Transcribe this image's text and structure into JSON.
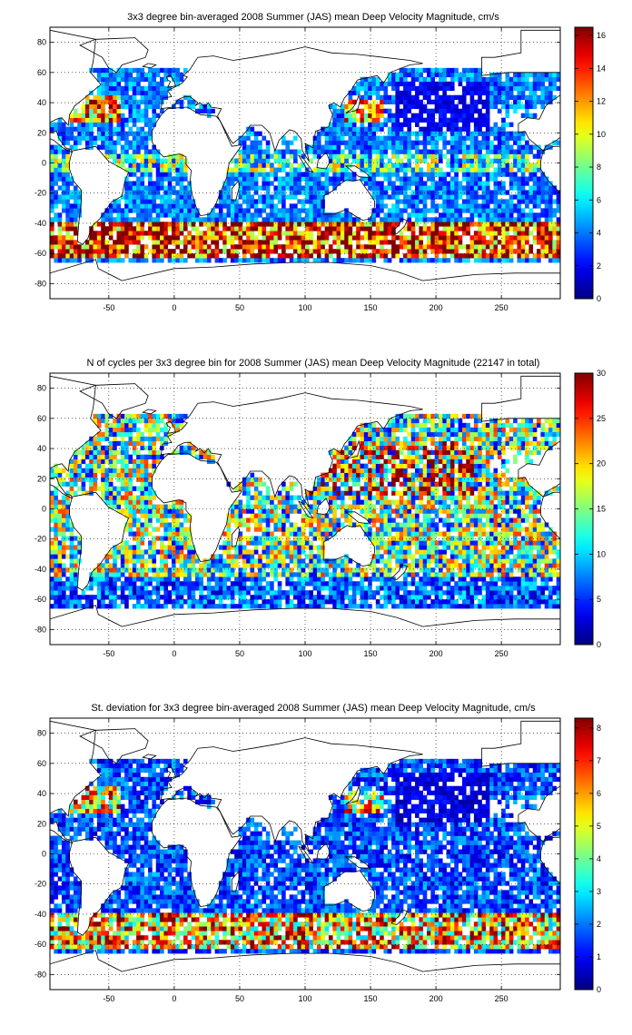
{
  "panels": [
    {
      "id": "mean",
      "title": "3x3 degree bin-averaged 2008 Summer (JAS) mean Deep Velocity Magnitude, cm/s",
      "colorbar_ticks": [
        "0",
        "2",
        "4",
        "6",
        "8",
        "10",
        "12",
        "14",
        "16"
      ],
      "colorbar_range": [
        0,
        16.5
      ],
      "pattern": "mean"
    },
    {
      "id": "ncycles",
      "title": "N of cycles per 3x3 degree bin for 2008 Summer (JAS) mean Deep Velocity Magnitude (22147 in total)",
      "colorbar_ticks": [
        "0",
        "5",
        "10",
        "15",
        "20",
        "25",
        "30"
      ],
      "colorbar_range": [
        0,
        30
      ],
      "pattern": "count"
    },
    {
      "id": "stdev",
      "title": "St. deviation for 3x3 degree bin-averaged 2008 Summer (JAS) mean Deep Velocity Magnitude, cm/s",
      "colorbar_ticks": [
        "0",
        "1",
        "2",
        "3",
        "4",
        "5",
        "6",
        "7",
        "8"
      ],
      "colorbar_range": [
        0,
        8.3
      ],
      "pattern": "std"
    }
  ],
  "axes": {
    "x_ticks": [
      "-50",
      "0",
      "50",
      "100",
      "150",
      "200",
      "250"
    ],
    "y_ticks": [
      "80",
      "60",
      "40",
      "20",
      "0",
      "-20",
      "-40",
      "-60",
      "-80"
    ],
    "xlim": [
      -95,
      295
    ],
    "ylim": [
      -90,
      90
    ],
    "grid": "dotted"
  },
  "colormap": "jet"
}
